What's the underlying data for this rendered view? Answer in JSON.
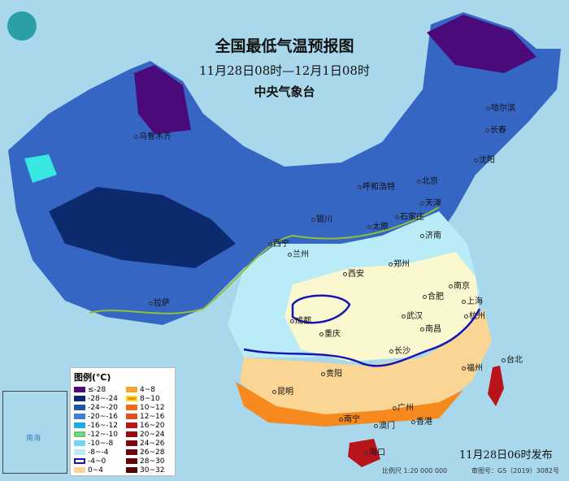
{
  "header": {
    "title": "全国最低气温预报图",
    "period": "11月28日08时—12月1日08时",
    "agency": "中央气象台"
  },
  "logo": {
    "icon": "cma-logo"
  },
  "cities": [
    "乌鲁木齐",
    "哈尔滨",
    "长春",
    "沈阳",
    "呼和浩特",
    "北京",
    "天津",
    "银川",
    "太原",
    "石家庄",
    "济南",
    "西宁",
    "兰州",
    "郑州",
    "西安",
    "合肥",
    "南京",
    "上海",
    "拉萨",
    "成都",
    "武汉",
    "杭州",
    "重庆",
    "南昌",
    "长沙",
    "福州",
    "台北",
    "贵阳",
    "昆明",
    "南宁",
    "广州",
    "澳门",
    "香港",
    "海口"
  ],
  "legend": {
    "title": "图例(℃)",
    "items": [
      {
        "label": "≤-28",
        "color": "#4b0a7a"
      },
      {
        "label": "-28~-24",
        "color": "#0c2a6e"
      },
      {
        "label": "-24~-20",
        "color": "#1d56a8"
      },
      {
        "label": "-20~-16",
        "color": "#3d7fd0"
      },
      {
        "label": "-16~-12",
        "color": "#1aaee6"
      },
      {
        "label": "-12~-10",
        "color": "#36e8e0",
        "border": "#8dbf3a"
      },
      {
        "label": "-10~-8",
        "color": "#6fd6f4"
      },
      {
        "label": "-8~-4",
        "color": "#b9ecf6"
      },
      {
        "label": "-4~0",
        "color": "#fbf7cf",
        "border": "#1515b5"
      },
      {
        "label": "0~4",
        "color": "#fbd593"
      },
      {
        "label": "4~8",
        "color": "#f6a431"
      },
      {
        "label": "8~10",
        "color": "#f68a1e",
        "border": "#f0e020"
      },
      {
        "label": "10~12",
        "color": "#f06a1a"
      },
      {
        "label": "12~16",
        "color": "#e0501a"
      },
      {
        "label": "16~20",
        "color": "#b8141a"
      },
      {
        "label": "20~24",
        "color": "#9a0a10"
      },
      {
        "label": "24~26",
        "color": "#80060c"
      },
      {
        "label": "26~28",
        "color": "#72050a"
      },
      {
        "label": "28~30",
        "color": "#640408"
      },
      {
        "label": "30~32",
        "color": "#560306"
      }
    ]
  },
  "inset": {
    "labels": [
      "南海"
    ]
  },
  "footer": {
    "issued": "11月28日06时发布",
    "scale": "比例尺 1:20 000 000",
    "review": "审图号：GS（2019）3082号"
  }
}
